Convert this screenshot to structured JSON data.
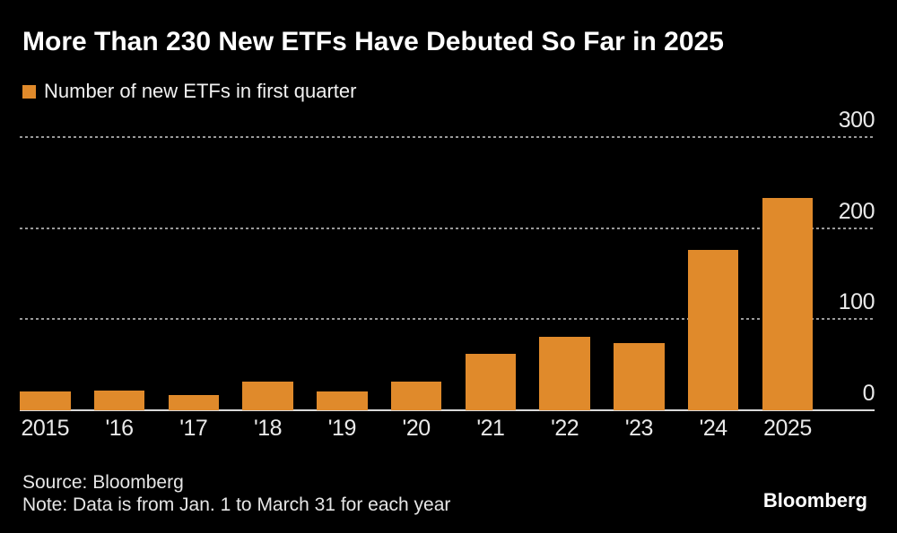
{
  "header": {
    "title": "More Than 230 New ETFs Have Debuted So Far in 2025"
  },
  "legend": {
    "label": "Number of new ETFs in first quarter"
  },
  "chart_data": {
    "type": "bar",
    "title": "More Than 230 New ETFs Have Debuted So Far in 2025",
    "series_name": "Number of new ETFs in first quarter",
    "categories": [
      "2015",
      "'16",
      "'17",
      "'18",
      "'19",
      "'20",
      "'21",
      "'22",
      "'23",
      "'24",
      "2025"
    ],
    "values": [
      21,
      22,
      17,
      31,
      21,
      31,
      62,
      81,
      74,
      176,
      233
    ],
    "xlabel": "",
    "ylabel": "",
    "ylim": [
      0,
      300
    ],
    "yticks": [
      0,
      100,
      200,
      300
    ],
    "grid": "horizontal-dotted",
    "legend_position": "top-left"
  },
  "colors": {
    "background": "#000000",
    "bar": "#E08A2B",
    "gridline": "#9A9A9A",
    "axis_line": "#D9D9D9",
    "title_text": "#FFFFFF",
    "tick_text": "#EAEAEA"
  },
  "footer": {
    "source": "Source: Bloomberg",
    "note": "Note: Data is from Jan. 1 to March 31 for each year",
    "logo": "Bloomberg"
  }
}
